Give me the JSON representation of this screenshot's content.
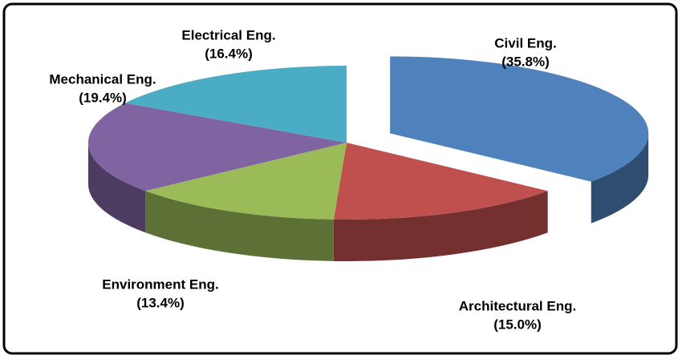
{
  "chart_data": {
    "type": "pie3d",
    "categories": [
      "Civil Eng.",
      "Architectural Eng.",
      "Environment Eng.",
      "Mechanical Eng.",
      "Electrical  Eng."
    ],
    "values": [
      35.8,
      15.0,
      13.4,
      19.4,
      16.4
    ],
    "value_labels": [
      "(35.8%)",
      "(15.0%)",
      "(13.4%)",
      "(19.4%)",
      "(16.4%)"
    ],
    "colors": [
      "#4f81bd",
      "#c0504d",
      "#9bbb59",
      "#8064a2",
      "#4bacc6"
    ],
    "exploded": [
      true,
      false,
      false,
      false,
      false
    ]
  }
}
